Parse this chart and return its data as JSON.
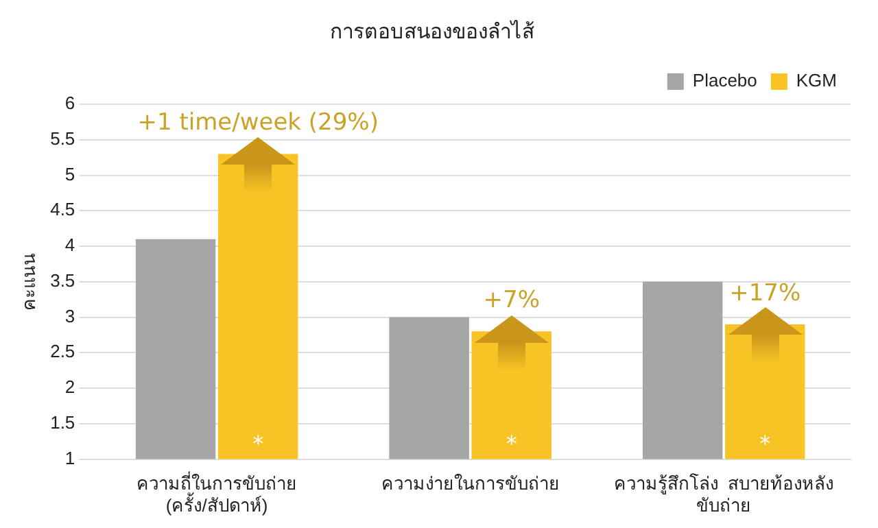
{
  "chart_data": {
    "type": "bar",
    "title": "การตอบสนองของลำไส้",
    "ylabel": "คะแนน",
    "categories": [
      "ความถี่ในการขับถ่าย\n(ครั้ง/สัปดาห์)",
      "ความง่ายในการขับถ่าย",
      "ความรู้สึกโล่ง  สบายท้องหลัง\nขับถ่าย"
    ],
    "series": [
      {
        "name": "Placebo",
        "color": "#a6a6a6",
        "values": [
          4.1,
          3.0,
          3.5
        ]
      },
      {
        "name": "KGM",
        "color": "#f7c325",
        "values": [
          5.3,
          2.8,
          2.9
        ]
      }
    ],
    "annotations": [
      "+1 time/week (29%)",
      "+7%",
      "+17%",
      "*",
      "*",
      "*"
    ],
    "ylim": [
      1,
      6
    ],
    "yticks": [
      1,
      1.5,
      2,
      2.5,
      3,
      3.5,
      4,
      4.5,
      5,
      5.5,
      6
    ],
    "grid": "y",
    "legend": "top right"
  }
}
